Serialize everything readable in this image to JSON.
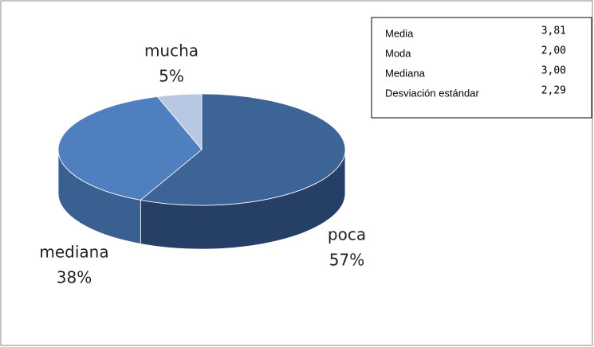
{
  "chart_data": {
    "type": "pie",
    "categories": [
      "poca",
      "mediana",
      "mucha"
    ],
    "values": [
      57,
      38,
      5
    ],
    "value_labels": [
      "57%",
      "38%",
      "5%"
    ],
    "colors": [
      "#3d6496",
      "#4f7fbf",
      "#b9c8e2"
    ],
    "side_colors": [
      "#253f66",
      "#3a5f91",
      "#8796b0"
    ],
    "stats": {
      "rows": [
        [
          "Media",
          "3,81"
        ],
        [
          "Moda",
          "2,00"
        ],
        [
          "Mediana",
          "3,00"
        ],
        [
          "Desviación estándar",
          "2,29"
        ]
      ]
    }
  }
}
